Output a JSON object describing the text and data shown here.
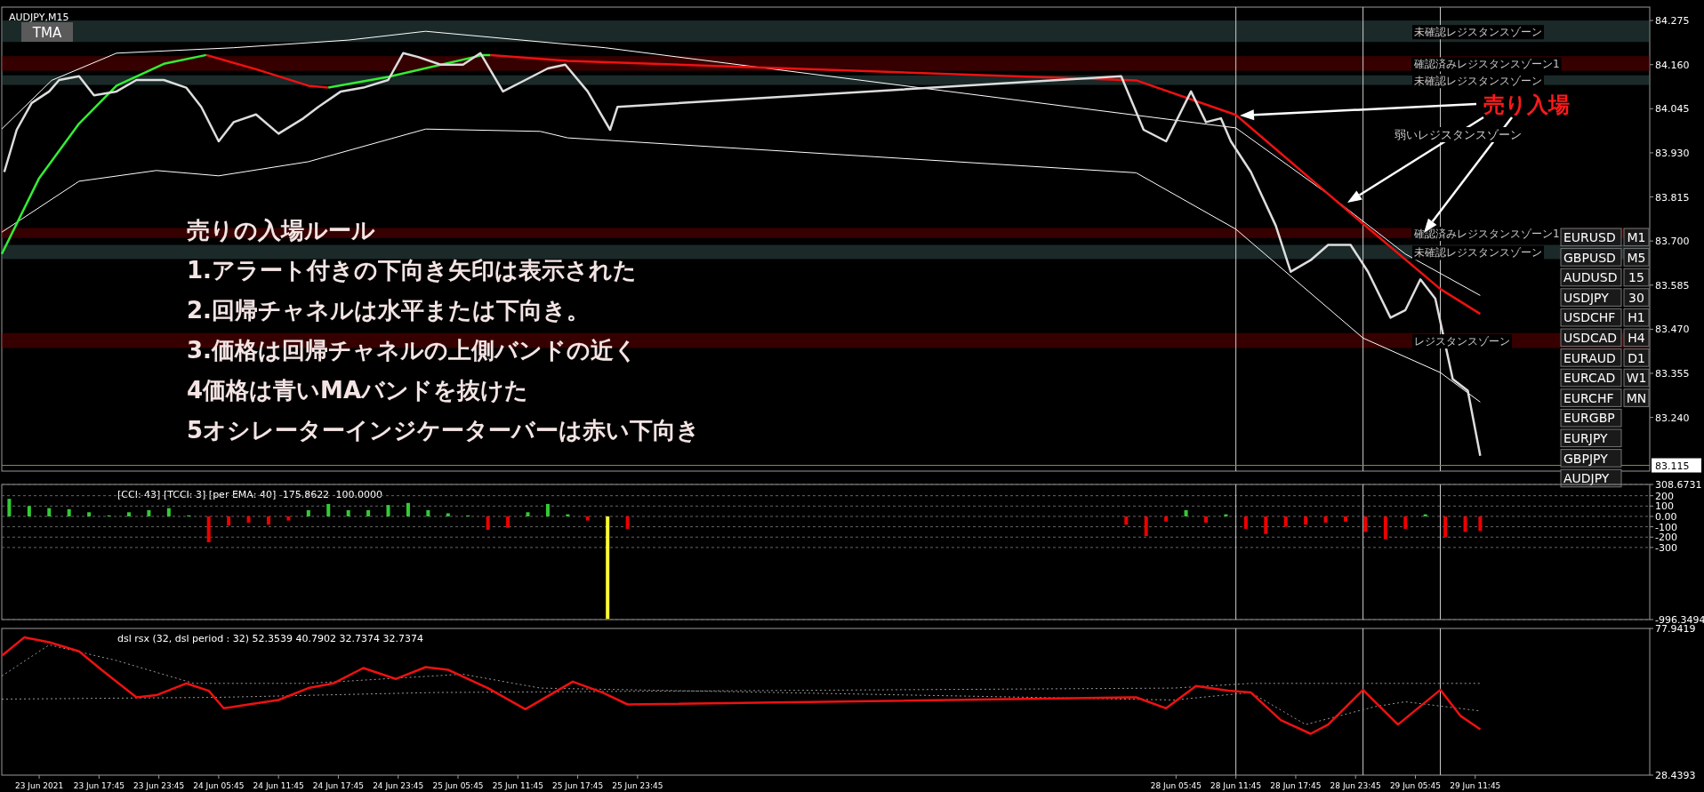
{
  "chart_data": [
    {
      "type": "line",
      "title": "AUDJPY,M15",
      "subtitle": "TMA",
      "xlim": [
        "2021-06-23T08:00",
        "2021-06-30T05:15"
      ],
      "ylim": [
        83.1,
        84.31
      ],
      "tick_labels": "y",
      "yticks": [
        {
          "value": 84.275,
          "label": "84.275"
        },
        {
          "value": 84.16,
          "label": "84.160"
        },
        {
          "value": 84.045,
          "label": "84.045"
        },
        {
          "value": 83.93,
          "label": "83.930"
        },
        {
          "value": 83.815,
          "label": "83.815"
        },
        {
          "value": 83.7,
          "label": "83.700"
        },
        {
          "value": 83.585,
          "label": "83.585"
        },
        {
          "value": 83.47,
          "label": "83.470"
        },
        {
          "value": 83.355,
          "label": "83.355"
        },
        {
          "value": 83.24,
          "label": "83.240"
        }
      ],
      "bands": [
        {
          "axis": "y",
          "from": 84.219,
          "to": 84.275,
          "label": "未確認レジスタンスゾーン",
          "color": "#3b5c5c"
        },
        {
          "axis": "y",
          "from": 84.144,
          "to": 84.182,
          "label": "確認済みレジスタンスゾーン1",
          "color": "#7a0000"
        },
        {
          "axis": "y",
          "from": 84.107,
          "to": 84.132,
          "label": "未確認レジスタンスゾーン",
          "color": "#3b5c5c"
        },
        {
          "axis": "y",
          "from": 83.708,
          "to": 83.734,
          "label": "確認済みレジスタンスゾーン1",
          "color": "#7a0000"
        },
        {
          "axis": "y",
          "from": 83.653,
          "to": 83.69,
          "label": "未確認レジスタンスゾーン",
          "color": "#3b5c5c"
        },
        {
          "axis": "y",
          "from": 83.421,
          "to": 83.46,
          "label": "レジスタンスゾーン",
          "color": "#7a0000"
        }
      ],
      "ref_lines": [
        {
          "axis": "x",
          "value": "2021-06-28T11:45",
          "label": null,
          "color": "#cccccc"
        },
        {
          "axis": "x",
          "value": "2021-06-29T00:30",
          "label": null,
          "color": "#cccccc"
        },
        {
          "axis": "x",
          "value": "2021-06-29T08:15",
          "label": null,
          "color": "#cccccc"
        },
        {
          "axis": "y",
          "value": 83.115,
          "label": "83.115",
          "color": "#8a8a3a"
        }
      ],
      "annotations": [
        "売り入場",
        "弱いレジスタンスゾーン"
      ],
      "series": [
        {
          "type": "line",
          "color": "#ffffff",
          "x": [
            "2021-06-23T08:00",
            "2021-06-23T13:00",
            "2021-06-23T19:30",
            "2021-06-24T07:15",
            "2021-06-24T18:45",
            "2021-06-25T02:30",
            "2021-06-25T20:30",
            "2021-06-28T11:45",
            "2021-06-28T21:00",
            "2021-06-29T04:45",
            "2021-06-29T12:15"
          ],
          "values": [
            83.992,
            84.119,
            84.19,
            84.204,
            84.224,
            84.247,
            84.204,
            83.995,
            83.822,
            83.666,
            83.558
          ]
        },
        {
          "type": "line",
          "color": "#ffffff",
          "x": [
            "2021-06-23T08:00",
            "2021-06-23T15:45",
            "2021-06-23T23:30",
            "2021-06-24T05:45",
            "2021-06-24T14:45",
            "2021-06-25T02:30",
            "2021-06-25T14:00",
            "2021-06-25T16:45",
            "2021-06-28T01:45",
            "2021-06-28T11:45",
            "2021-06-29T00:30",
            "2021-06-29T08:15",
            "2021-06-29T12:15"
          ],
          "values": [
            83.723,
            83.856,
            83.884,
            83.87,
            83.907,
            83.992,
            83.986,
            83.969,
            83.878,
            83.731,
            83.447,
            83.357,
            83.28
          ]
        },
        {
          "type": "line",
          "color": "#33ee33",
          "x": [
            "2021-06-23T08:00",
            "2021-06-23T11:45",
            "2021-06-23T15:45",
            "2021-06-23T19:30",
            "2021-06-24T00:15",
            "2021-06-24T04:30"
          ],
          "values": [
            83.666,
            83.864,
            84.006,
            84.105,
            84.162,
            84.185
          ]
        },
        {
          "type": "line",
          "color": "#ee1111",
          "x": [
            "2021-06-24T04:30",
            "2021-06-24T09:30",
            "2021-06-24T14:45",
            "2021-06-24T16:45"
          ],
          "values": [
            84.185,
            84.148,
            84.105,
            84.1
          ]
        },
        {
          "type": "line",
          "color": "#33ee33",
          "x": [
            "2021-06-24T16:45",
            "2021-06-24T22:45",
            "2021-06-25T08:15",
            "2021-06-25T09:00"
          ],
          "values": [
            84.1,
            84.128,
            84.185,
            84.185
          ]
        },
        {
          "type": "line",
          "color": "#ee1111",
          "x": [
            "2021-06-25T09:00",
            "2021-06-25T16:45",
            "2021-06-28T01:45",
            "2021-06-28T11:45",
            "2021-06-29T00:30",
            "2021-06-29T08:15",
            "2021-06-29T12:15"
          ],
          "values": [
            84.185,
            84.17,
            84.119,
            84.029,
            83.745,
            83.575,
            83.51
          ]
        },
        {
          "type": "line",
          "color": "#dddddd",
          "x": [
            "2021-06-23T08:15",
            "2021-06-23T09:30",
            "2021-06-23T11:00",
            "2021-06-23T12:45",
            "2021-06-23T13:45",
            "2021-06-23T15:45",
            "2021-06-23T17:15",
            "2021-06-23T19:30",
            "2021-06-23T21:30",
            "2021-06-24T00:15",
            "2021-06-24T02:30",
            "2021-06-24T04:00",
            "2021-06-24T05:45",
            "2021-06-24T07:15",
            "2021-06-24T09:30",
            "2021-06-24T11:45",
            "2021-06-24T14:15",
            "2021-06-24T15:45",
            "2021-06-24T18:00",
            "2021-06-24T20:15",
            "2021-06-24T22:45",
            "2021-06-25T00:15",
            "2021-06-25T01:45",
            "2021-06-25T04:00",
            "2021-06-25T06:15",
            "2021-06-25T08:00",
            "2021-06-25T10:15",
            "2021-06-25T12:30",
            "2021-06-25T14:45",
            "2021-06-25T16:30",
            "2021-06-25T18:45",
            "2021-06-25T21:00",
            "2021-06-25T21:45",
            "2021-06-28T00:15",
            "2021-06-28T02:30",
            "2021-06-28T04:45",
            "2021-06-28T07:15",
            "2021-06-28T08:45",
            "2021-06-28T10:15",
            "2021-06-28T11:15",
            "2021-06-28T13:15",
            "2021-06-28T15:45",
            "2021-06-28T17:15",
            "2021-06-28T19:15",
            "2021-06-28T21:00",
            "2021-06-28T23:15",
            "2021-06-29T01:00",
            "2021-06-29T03:15",
            "2021-06-29T04:45",
            "2021-06-29T06:15",
            "2021-06-29T07:45",
            "2021-06-29T09:30",
            "2021-06-29T11:00",
            "2021-06-29T12:15"
          ],
          "values": [
            83.88,
            83.99,
            84.06,
            84.09,
            84.12,
            84.13,
            84.08,
            84.09,
            84.12,
            84.12,
            84.1,
            84.05,
            83.96,
            84.01,
            84.03,
            83.98,
            84.02,
            84.05,
            84.09,
            84.1,
            84.12,
            84.19,
            84.18,
            84.16,
            84.16,
            84.19,
            84.09,
            84.12,
            84.15,
            84.16,
            84.09,
            83.99,
            84.05,
            84.13,
            83.99,
            83.96,
            84.09,
            84.01,
            84.02,
            83.96,
            83.88,
            83.74,
            83.62,
            83.65,
            83.69,
            83.69,
            83.62,
            83.5,
            83.52,
            83.6,
            83.55,
            83.34,
            83.31,
            83.14
          ]
        }
      ]
    },
    {
      "type": "other",
      "annotations": [
        "売りの入場ルール",
        "1.アラート付きの下向き矢印は表示された",
        "2.回帰チャネルは水平または下向き。",
        "3.価格は回帰チャネルの上側バンドの近く",
        "4価格は青いMAバンドを抜けた",
        "5オシレーターインジケーターバーは赤い下向き"
      ]
    },
    {
      "type": "other",
      "categories": [
        "EURUSD",
        "GBPUSD",
        "AUDUSD",
        "USDJPY",
        "USDCHF",
        "USDCAD",
        "EURAUD",
        "EURCAD",
        "EURCHF",
        "EURGBP",
        "EURJPY",
        "GBPJPY",
        "AUDJPY"
      ],
      "annotations": [
        "M1",
        "M5",
        "15",
        "30",
        "H1",
        "H4",
        "D1",
        "W1",
        "MN"
      ]
    },
    {
      "type": "bar",
      "title": "[CCI: 43] [TCCI: 3] [per EMA: 40]  -175.8622 -100.0000",
      "xlim": [
        "2021-06-23T08:00",
        "2021-06-30T05:15"
      ],
      "ylim": [
        -996.3494,
        308.6731
      ],
      "tick_labels": "y",
      "grid": "y",
      "yticks": [
        {
          "value": 308.6731,
          "label": "308.6731"
        },
        200,
        100,
        {
          "value": 0,
          "label": "0.00"
        },
        -100,
        -200,
        -300,
        {
          "value": -996.3494,
          "label": "-996.3494"
        }
      ],
      "ref_lines": [
        {
          "axis": "x",
          "value": "2021-06-28T11:45",
          "label": null,
          "color": "#cccccc"
        },
        {
          "axis": "x",
          "value": "2021-06-29T00:30",
          "label": null,
          "color": "#cccccc"
        },
        {
          "axis": "x",
          "value": "2021-06-29T08:15",
          "label": null,
          "color": "#cccccc"
        }
      ],
      "x": [
        "2021-06-23T08:45",
        "2021-06-23T10:45",
        "2021-06-23T12:45",
        "2021-06-23T14:45",
        "2021-06-23T16:45",
        "2021-06-23T18:45",
        "2021-06-23T20:45",
        "2021-06-23T22:45",
        "2021-06-24T00:45",
        "2021-06-24T02:45",
        "2021-06-24T04:45",
        "2021-06-24T06:45",
        "2021-06-24T08:45",
        "2021-06-24T10:45",
        "2021-06-24T12:45",
        "2021-06-24T14:45",
        "2021-06-24T16:45",
        "2021-06-24T18:45",
        "2021-06-24T20:45",
        "2021-06-24T22:45",
        "2021-06-25T00:45",
        "2021-06-25T02:45",
        "2021-06-25T04:45",
        "2021-06-25T06:45",
        "2021-06-25T08:45",
        "2021-06-25T10:45",
        "2021-06-25T12:45",
        "2021-06-25T14:45",
        "2021-06-25T16:45",
        "2021-06-25T18:45",
        "2021-06-25T20:45",
        "2021-06-25T22:45",
        "2021-06-28T00:45",
        "2021-06-28T02:45",
        "2021-06-28T04:45",
        "2021-06-28T06:45",
        "2021-06-28T08:45",
        "2021-06-28T10:45",
        "2021-06-28T12:45",
        "2021-06-28T14:45",
        "2021-06-28T16:45",
        "2021-06-28T18:45",
        "2021-06-28T20:45",
        "2021-06-28T22:45",
        "2021-06-29T00:45",
        "2021-06-29T02:45",
        "2021-06-29T04:45",
        "2021-06-29T06:45",
        "2021-06-29T08:45",
        "2021-06-29T10:45",
        "2021-06-29T12:15"
      ],
      "values": [
        170,
        100,
        80,
        70,
        40,
        10,
        40,
        60,
        80,
        10,
        -250,
        -90,
        -60,
        -80,
        -40,
        60,
        120,
        60,
        60,
        110,
        130,
        60,
        30,
        10,
        -130,
        -110,
        40,
        120,
        20,
        -40,
        -990,
        -120,
        -80,
        -190,
        -50,
        60,
        -60,
        20,
        -120,
        -170,
        -100,
        -80,
        -60,
        -50,
        -150,
        -220,
        -120,
        20,
        -200,
        -150,
        -140
      ],
      "colors": [
        "#33cc33",
        "#33cc33",
        "#33cc33",
        "#33cc33",
        "#33cc33",
        "#33cc33",
        "#33cc33",
        "#33cc33",
        "#33cc33",
        "#33cc33",
        "#ee0000",
        "#ee0000",
        "#ee0000",
        "#ee0000",
        "#ee0000",
        "#33cc33",
        "#33cc33",
        "#33cc33",
        "#33cc33",
        "#33cc33",
        "#33cc33",
        "#33cc33",
        "#33cc33",
        "#33cc33",
        "#ee0000",
        "#ee0000",
        "#33cc33",
        "#33cc33",
        "#33cc33",
        "#ee0000",
        "#ffff33",
        "#ee0000",
        "#ee0000",
        "#ee0000",
        "#ee0000",
        "#33cc33",
        "#ee0000",
        "#33cc33",
        "#ee0000",
        "#ee0000",
        "#ee0000",
        "#ee0000",
        "#ee0000",
        "#ee0000",
        "#ee0000",
        "#ee0000",
        "#ee0000",
        "#33cc33",
        "#ee0000",
        "#ee0000",
        "#ee0000"
      ]
    },
    {
      "type": "line",
      "title": "dsl rsx (32, dsl period : 32) 52.3539 40.7902 32.7374 32.7374",
      "xlim": [
        "2021-06-23T08:00",
        "2021-06-30T05:15"
      ],
      "ylim": [
        28.4393,
        77.9419
      ],
      "yticks": [
        {
          "value": 77.9419,
          "label": "77.9419"
        },
        {
          "value": 28.4393,
          "label": "28.4393"
        }
      ],
      "xticks": [
        {
          "value": "2021-06-23T11:45",
          "label": "23 Jun 2021"
        },
        {
          "value": "2021-06-23T17:45",
          "label": "23 Jun 17:45"
        },
        {
          "value": "2021-06-23T23:45",
          "label": "23 Jun 23:45"
        },
        {
          "value": "2021-06-24T05:45",
          "label": "24 Jun 05:45"
        },
        {
          "value": "2021-06-24T11:45",
          "label": "24 Jun 11:45"
        },
        {
          "value": "2021-06-24T17:45",
          "label": "24 Jun 17:45"
        },
        {
          "value": "2021-06-24T23:45",
          "label": "24 Jun 23:45"
        },
        {
          "value": "2021-06-25T05:45",
          "label": "25 Jun 05:45"
        },
        {
          "value": "2021-06-25T11:45",
          "label": "25 Jun 11:45"
        },
        {
          "value": "2021-06-25T17:45",
          "label": "25 Jun 17:45"
        },
        {
          "value": "2021-06-25T23:45",
          "label": "25 Jun 23:45"
        },
        {
          "value": "2021-06-28T05:45",
          "label": "28 Jun 05:45"
        },
        {
          "value": "2021-06-28T11:45",
          "label": "28 Jun 11:45"
        },
        {
          "value": "2021-06-28T17:45",
          "label": "28 Jun 17:45"
        },
        {
          "value": "2021-06-28T23:45",
          "label": "28 Jun 23:45"
        },
        {
          "value": "2021-06-29T05:45",
          "label": "29 Jun 05:45"
        },
        {
          "value": "2021-06-29T11:45",
          "label": "29 Jun 11:45"
        }
      ],
      "ref_lines": [
        {
          "axis": "x",
          "value": "2021-06-28T11:45",
          "label": null,
          "color": "#cccccc"
        },
        {
          "axis": "x",
          "value": "2021-06-29T00:30",
          "label": null,
          "color": "#cccccc"
        },
        {
          "axis": "x",
          "value": "2021-06-29T08:15",
          "label": null,
          "color": "#cccccc"
        }
      ],
      "series": [
        {
          "type": "line",
          "color": "#999999",
          "line_style": "dotted",
          "x": [
            "2021-06-23T08:00",
            "2021-06-23T12:45",
            "2021-06-23T19:30",
            "2021-06-24T03:15",
            "2021-06-24T14:45",
            "2021-06-25T06:15",
            "2021-06-25T14:00",
            "2021-06-28T05:30",
            "2021-06-28T13:15",
            "2021-06-28T18:45",
            "2021-06-29T01:45",
            "2021-06-29T04:45",
            "2021-06-29T12:15"
          ],
          "values": [
            61.9,
            72.4,
            67.1,
            59.4,
            59.4,
            62.5,
            57.8,
            53.8,
            56.3,
            45.5,
            51.6,
            53.2,
            50.1
          ]
        },
        {
          "type": "line",
          "color": "#999999",
          "line_style": "dotted",
          "x": [
            "2021-06-23T08:00",
            "2021-06-24T05:45",
            "2021-06-25T03:15",
            "2021-06-28T05:30",
            "2021-06-28T13:15",
            "2021-06-29T12:15"
          ],
          "values": [
            54.1,
            54.7,
            56.3,
            57.8,
            59.4,
            59.4
          ]
        },
        {
          "type": "line",
          "color": "#ee1111",
          "x": [
            "2021-06-23T08:00",
            "2021-06-23T10:15",
            "2021-06-23T12:45",
            "2021-06-23T15:45",
            "2021-06-23T18:00",
            "2021-06-23T21:30",
            "2021-06-23T23:30",
            "2021-06-24T02:30",
            "2021-06-24T04:45",
            "2021-06-24T06:15",
            "2021-06-24T08:45",
            "2021-06-24T11:45",
            "2021-06-24T14:45",
            "2021-06-24T17:15",
            "2021-06-24T20:15",
            "2021-06-24T23:30",
            "2021-06-25T02:30",
            "2021-06-25T04:45",
            "2021-06-25T08:45",
            "2021-06-25T12:30",
            "2021-06-25T17:15",
            "2021-06-25T20:15",
            "2021-06-25T22:45",
            "2021-06-28T01:45",
            "2021-06-28T04:45",
            "2021-06-28T07:45",
            "2021-06-28T11:00",
            "2021-06-28T13:15",
            "2021-06-28T16:15",
            "2021-06-28T19:15",
            "2021-06-28T21:00",
            "2021-06-29T00:30",
            "2021-06-29T04:00",
            "2021-06-29T08:15",
            "2021-06-29T10:15",
            "2021-06-29T12:15"
          ],
          "values": [
            68.7,
            74.9,
            73.3,
            70.2,
            64.0,
            54.7,
            55.4,
            59.4,
            56.9,
            51.0,
            52.3,
            53.8,
            57.8,
            59.4,
            64.6,
            60.9,
            64.9,
            64.0,
            57.8,
            50.7,
            60.0,
            56.3,
            52.3,
            54.7,
            51.0,
            58.5,
            56.9,
            56.3,
            47.0,
            42.4,
            45.5,
            57.2,
            45.5,
            57.2,
            48.5,
            43.9
          ]
        }
      ]
    }
  ]
}
